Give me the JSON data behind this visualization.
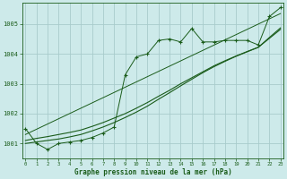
{
  "title": "Graphe pression niveau de la mer (hPa)",
  "background_color": "#cdeaea",
  "grid_color": "#a8cccc",
  "line_color": "#1a5c1a",
  "x_ticks": [
    0,
    1,
    2,
    3,
    4,
    5,
    6,
    7,
    8,
    9,
    10,
    11,
    12,
    13,
    14,
    15,
    16,
    17,
    18,
    19,
    20,
    21,
    22,
    23
  ],
  "ylim": [
    1000.5,
    1005.7
  ],
  "yticks": [
    1001,
    1002,
    1003,
    1004,
    1005
  ],
  "main_x": [
    0,
    1,
    2,
    3,
    4,
    5,
    6,
    7,
    8,
    9,
    10,
    11,
    12,
    13,
    14,
    15,
    16,
    17,
    18,
    19,
    20,
    21,
    22,
    23
  ],
  "main_y": [
    1001.5,
    1001.0,
    1000.8,
    1001.0,
    1001.05,
    1001.1,
    1001.2,
    1001.35,
    1001.55,
    1003.3,
    1003.9,
    1004.0,
    1004.45,
    1004.5,
    1004.4,
    1004.85,
    1004.4,
    1004.4,
    1004.45,
    1004.45,
    1004.45,
    1004.3,
    1005.25,
    1005.55
  ],
  "reg1_x": [
    0,
    1,
    2,
    3,
    4,
    5,
    6,
    7,
    8,
    9,
    10,
    11,
    12,
    13,
    14,
    15,
    16,
    17,
    18,
    19,
    20,
    21,
    22,
    23
  ],
  "reg1_y": [
    1001.0,
    1001.05,
    1001.1,
    1001.15,
    1001.22,
    1001.3,
    1001.42,
    1001.55,
    1001.7,
    1001.87,
    1002.05,
    1002.25,
    1002.48,
    1002.7,
    1002.93,
    1003.15,
    1003.37,
    1003.57,
    1003.75,
    1003.92,
    1004.07,
    1004.22,
    1004.52,
    1004.82
  ],
  "reg2_x": [
    0,
    1,
    2,
    3,
    4,
    5,
    6,
    7,
    8,
    9,
    10,
    11,
    12,
    13,
    14,
    15,
    16,
    17,
    18,
    19,
    20,
    21,
    22,
    23
  ],
  "reg2_y": [
    1001.1,
    1001.17,
    1001.23,
    1001.3,
    1001.37,
    1001.45,
    1001.57,
    1001.7,
    1001.85,
    1002.0,
    1002.18,
    1002.37,
    1002.58,
    1002.78,
    1003.0,
    1003.2,
    1003.4,
    1003.6,
    1003.77,
    1003.93,
    1004.08,
    1004.22,
    1004.55,
    1004.87
  ],
  "trend_x": [
    0,
    23
  ],
  "trend_y": [
    1001.3,
    1005.35
  ]
}
